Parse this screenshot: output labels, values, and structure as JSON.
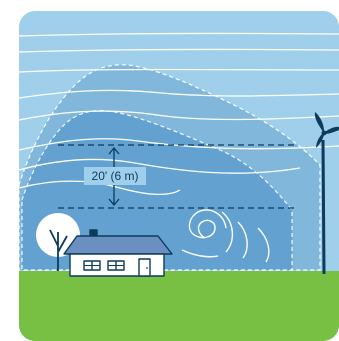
{
  "diagram": {
    "height_label": "20' (6 m)"
  },
  "colors": {
    "sky": "#9fcfea",
    "turbulence_outer": "#7fb6db",
    "turbulence_inner": "#5f9fcf",
    "grass": "#78c043",
    "house_roof": "#6a8fc0",
    "house_wall": "#ffffff",
    "stroke_dark": "#0c3b5c",
    "wind_lines": "#ffffff"
  }
}
